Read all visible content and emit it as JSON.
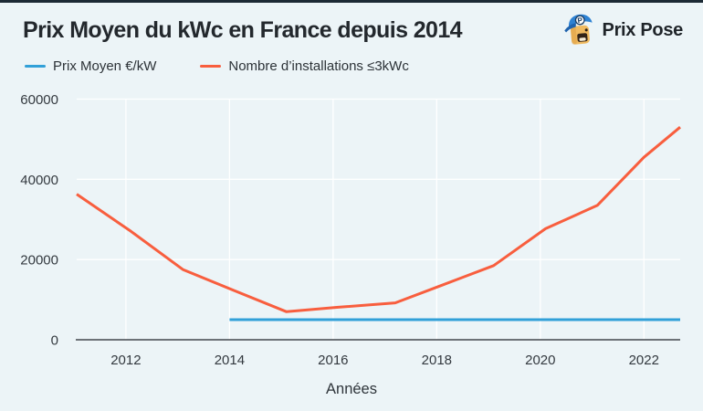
{
  "header": {
    "title": "Prix Moyen du kWc en France depuis 2014",
    "brand_name": "Prix Pose",
    "brand_badge_letter": "P"
  },
  "colors": {
    "background": "#ecf4f7",
    "top_border": "#1c2a35",
    "grid": "#ffffff",
    "axis": "#41474d",
    "tick_text": "#33393f",
    "blue_series": "#31a0d8",
    "orange_series": "#f85e3e"
  },
  "chart_data": {
    "type": "line",
    "title": "Prix Moyen du kWc en France depuis 2014",
    "xlabel": "Années",
    "ylabel": "",
    "xlim": [
      2011.05,
      2022.7
    ],
    "ylim": [
      0,
      60000
    ],
    "xticks": [
      2012,
      2014,
      2016,
      2018,
      2020,
      2022
    ],
    "yticks": [
      0,
      20000,
      40000,
      60000
    ],
    "grid": true,
    "legend_position": "top-left",
    "series": [
      {
        "name": "Prix Moyen €/kW",
        "color": "#31a0d8",
        "x": [
          2014,
          2022.7
        ],
        "y": [
          5000,
          5000
        ]
      },
      {
        "name": "Nombre d’installations ≤3kWc",
        "color": "#f85e3e",
        "x": [
          2011.05,
          2012.1,
          2013.1,
          2014.1,
          2015.1,
          2016.1,
          2017.2,
          2018.1,
          2019.1,
          2020.1,
          2021.1,
          2022,
          2022.7
        ],
        "y": [
          36300,
          27000,
          17500,
          12200,
          7000,
          8100,
          9200,
          13600,
          18500,
          27700,
          33500,
          45500,
          53000
        ]
      }
    ]
  }
}
